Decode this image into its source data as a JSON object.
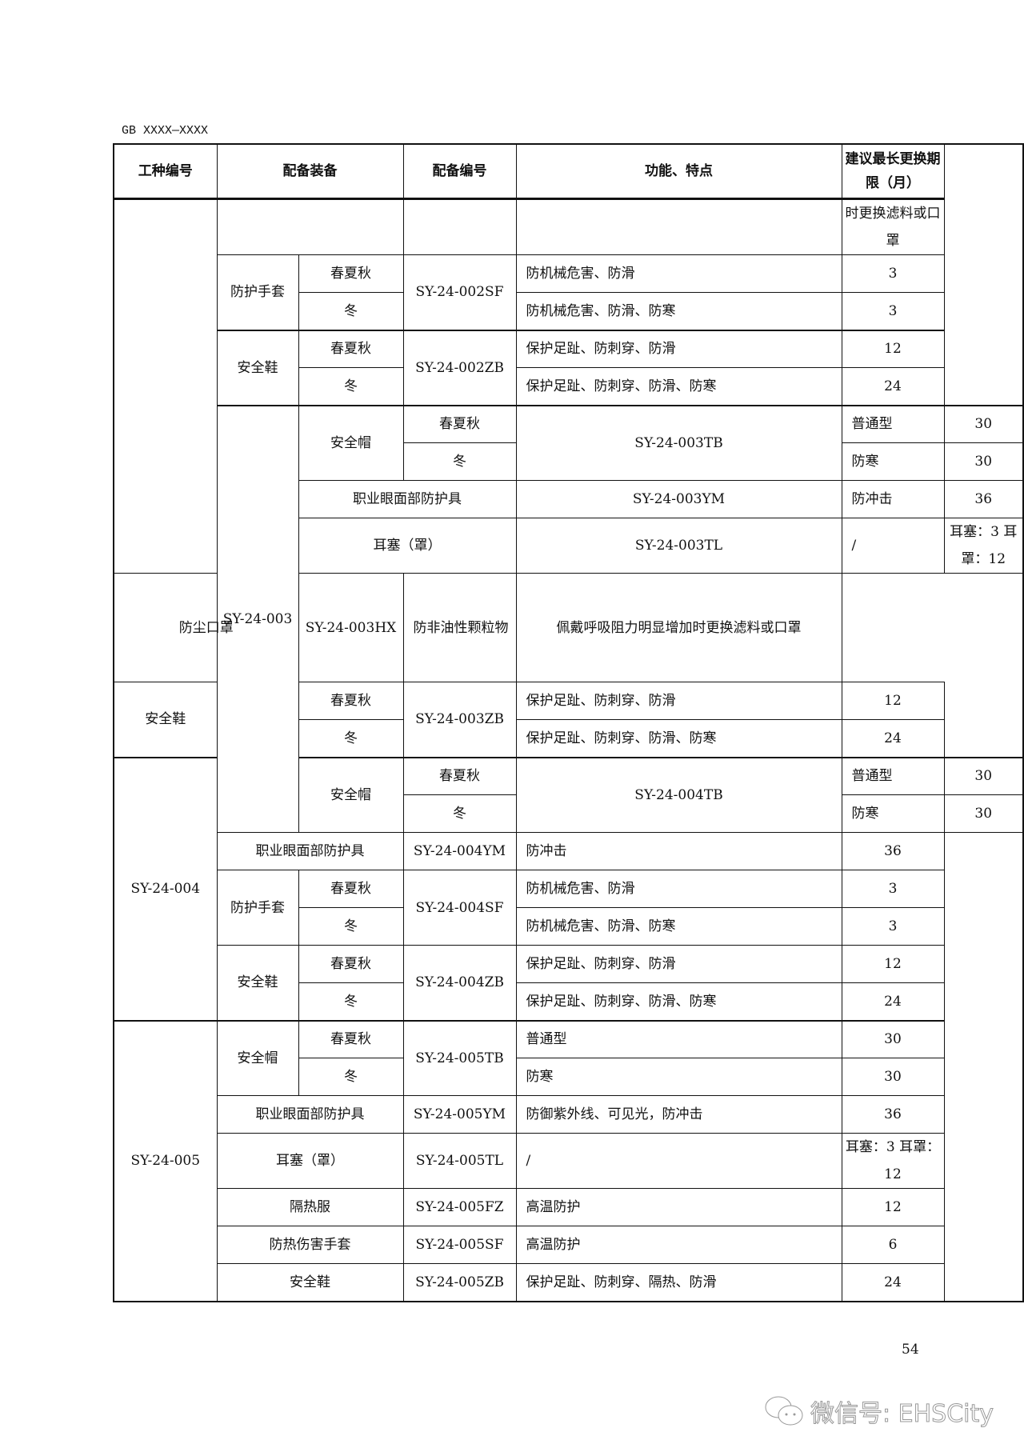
{
  "header_code": "GB XXXX—XXXX",
  "page_number": "54",
  "watermark": "微信号: EHSCity",
  "table": {
    "columns": [
      "工种编号",
      "配备装备",
      "配备编号",
      "功能、特点",
      "建议最长更换期限（月）"
    ],
    "rows": [
      {
        "h": 69,
        "g": true,
        "cells": [
          {
            "t": "",
            "rs": 9
          },
          {
            "t": "",
            "cs": 2
          },
          {
            "t": ""
          },
          {
            "t": "",
            "l": true
          },
          {
            "t": "时更换滤料或口罩"
          }
        ]
      },
      {
        "h": 47,
        "cells": [
          {
            "t": "防护手套",
            "rs": 2
          },
          {
            "t": "春夏秋"
          },
          {
            "t": "SY-24-002SF",
            "rs": 2
          },
          {
            "t": "防机械危害、防滑",
            "l": true
          },
          {
            "t": "3"
          }
        ]
      },
      {
        "h": 47,
        "cells": [
          {
            "t": "冬"
          },
          {
            "t": "防机械危害、防滑、防寒",
            "l": true
          },
          {
            "t": "3"
          }
        ]
      },
      {
        "h": 47,
        "g2": true,
        "cells": [
          {
            "t": "安全鞋",
            "rs": 2
          },
          {
            "t": "春夏秋"
          },
          {
            "t": "SY-24-002ZB",
            "rs": 2
          },
          {
            "t": "保护足趾、防刺穿、防滑",
            "l": true
          },
          {
            "t": "12"
          }
        ]
      },
      {
        "h": 47,
        "cells": [
          {
            "t": "冬"
          },
          {
            "t": "保护足趾、防刺穿、防滑、防寒",
            "l": true
          },
          {
            "t": "24"
          }
        ]
      },
      {
        "h": 47,
        "g": true,
        "cells": [
          {
            "t": "SY-24-003",
            "rs": 9
          },
          {
            "t": "安全帽",
            "rs": 2
          },
          {
            "t": "春夏秋"
          },
          {
            "t": "SY-24-003TB",
            "rs": 2
          },
          {
            "t": "普通型",
            "l": true
          },
          {
            "t": "30"
          }
        ]
      },
      {
        "h": 47,
        "cells": [
          {
            "t": "冬"
          },
          {
            "t": "防寒",
            "l": true
          },
          {
            "t": "30"
          }
        ]
      },
      {
        "h": 47,
        "cells": [
          {
            "t": "职业眼面部防护具",
            "cs": 2
          },
          {
            "t": "SY-24-003YM"
          },
          {
            "t": "防冲击",
            "l": true
          },
          {
            "t": "36"
          }
        ]
      },
      {
        "h": 69,
        "cells": [
          {
            "t": "耳塞（罩）",
            "cs": 2
          },
          {
            "t": "SY-24-003TL"
          },
          {
            "t": "/",
            "l": true
          },
          {
            "t": "耳塞：3 耳罩：12"
          }
        ]
      },
      {
        "h": 136,
        "cells": [
          {
            "t": "防尘口罩",
            "cs": 2
          },
          {
            "t": "SY-24-003HX"
          },
          {
            "t": "防非油性颗粒物",
            "l": true
          },
          {
            "t": "佩戴呼吸阻力明显增加时更换滤料或口罩"
          }
        ]
      },
      {
        "h": 47,
        "cells": [
          {
            "t": "安全鞋",
            "rs": 2
          },
          {
            "t": "春夏秋"
          },
          {
            "t": "SY-24-003ZB",
            "rs": 2
          },
          {
            "t": "保护足趾、防刺穿、防滑",
            "l": true
          },
          {
            "t": "12"
          }
        ]
      },
      {
        "h": 47,
        "cells": [
          {
            "t": "冬"
          },
          {
            "t": "保护足趾、防刺穿、防滑、防寒",
            "l": true
          },
          {
            "t": "24"
          }
        ]
      },
      {
        "h": 47,
        "g": true,
        "cells": [
          {
            "t": "SY-24-004",
            "rs": 7
          },
          {
            "t": "安全帽",
            "rs": 2
          },
          {
            "t": "春夏秋"
          },
          {
            "t": "SY-24-004TB",
            "rs": 2
          },
          {
            "t": "普通型",
            "l": true
          },
          {
            "t": "30"
          }
        ]
      },
      {
        "h": 47,
        "cells": [
          {
            "t": "冬"
          },
          {
            "t": "防寒",
            "l": true
          },
          {
            "t": "30"
          }
        ]
      },
      {
        "h": 47,
        "cells": [
          {
            "t": "职业眼面部防护具",
            "cs": 2
          },
          {
            "t": "SY-24-004YM"
          },
          {
            "t": "防冲击",
            "l": true
          },
          {
            "t": "36"
          }
        ]
      },
      {
        "h": 47,
        "cells": [
          {
            "t": "防护手套",
            "rs": 2
          },
          {
            "t": "春夏秋"
          },
          {
            "t": "SY-24-004SF",
            "rs": 2
          },
          {
            "t": "防机械危害、防滑",
            "l": true
          },
          {
            "t": "3"
          }
        ]
      },
      {
        "h": 47,
        "cells": [
          {
            "t": "冬"
          },
          {
            "t": "防机械危害、防滑、防寒",
            "l": true
          },
          {
            "t": "3"
          }
        ]
      },
      {
        "h": 47,
        "cells": [
          {
            "t": "安全鞋",
            "rs": 2
          },
          {
            "t": "春夏秋"
          },
          {
            "t": "SY-24-004ZB",
            "rs": 2
          },
          {
            "t": "保护足趾、防刺穿、防滑",
            "l": true
          },
          {
            "t": "12"
          }
        ]
      },
      {
        "h": 47,
        "cells": [
          {
            "t": "冬"
          },
          {
            "t": "保护足趾、防刺穿、防滑、防寒",
            "l": true
          },
          {
            "t": "24"
          }
        ]
      },
      {
        "h": 47,
        "g": true,
        "cells": [
          {
            "t": "SY-24-005",
            "rs": 8
          },
          {
            "t": "安全帽",
            "rs": 2
          },
          {
            "t": "春夏秋"
          },
          {
            "t": "SY-24-005TB",
            "rs": 2
          },
          {
            "t": "普通型",
            "l": true
          },
          {
            "t": "30"
          }
        ]
      },
      {
        "h": 47,
        "cells": [
          {
            "t": "冬"
          },
          {
            "t": "防寒",
            "l": true
          },
          {
            "t": "30"
          }
        ]
      },
      {
        "h": 47,
        "cells": [
          {
            "t": "职业眼面部防护具",
            "cs": 2
          },
          {
            "t": "SY-24-005YM"
          },
          {
            "t": "防御紫外线、可见光，防冲击",
            "l": true
          },
          {
            "t": "36"
          }
        ]
      },
      {
        "h": 69,
        "cells": [
          {
            "t": "耳塞（罩）",
            "cs": 2
          },
          {
            "t": "SY-24-005TL"
          },
          {
            "t": "/",
            "l": true
          },
          {
            "t": "耳塞：3 耳罩：12"
          }
        ]
      },
      {
        "h": 47,
        "cells": [
          {
            "t": "隔热服",
            "cs": 2
          },
          {
            "t": "SY-24-005FZ"
          },
          {
            "t": "高温防护",
            "l": true
          },
          {
            "t": "12"
          }
        ]
      },
      {
        "h": 47,
        "cells": [
          {
            "t": "防热伤害手套",
            "cs": 2
          },
          {
            "t": "SY-24-005SF"
          },
          {
            "t": "高温防护",
            "l": true
          },
          {
            "t": "6"
          }
        ]
      },
      {
        "h": 47,
        "cells": [
          {
            "t": "安全鞋",
            "cs": 2
          },
          {
            "t": "SY-24-005ZB"
          },
          {
            "t": "保护足趾、防刺穿、隔热、防滑",
            "l": true
          },
          {
            "t": "24"
          }
        ]
      }
    ]
  }
}
